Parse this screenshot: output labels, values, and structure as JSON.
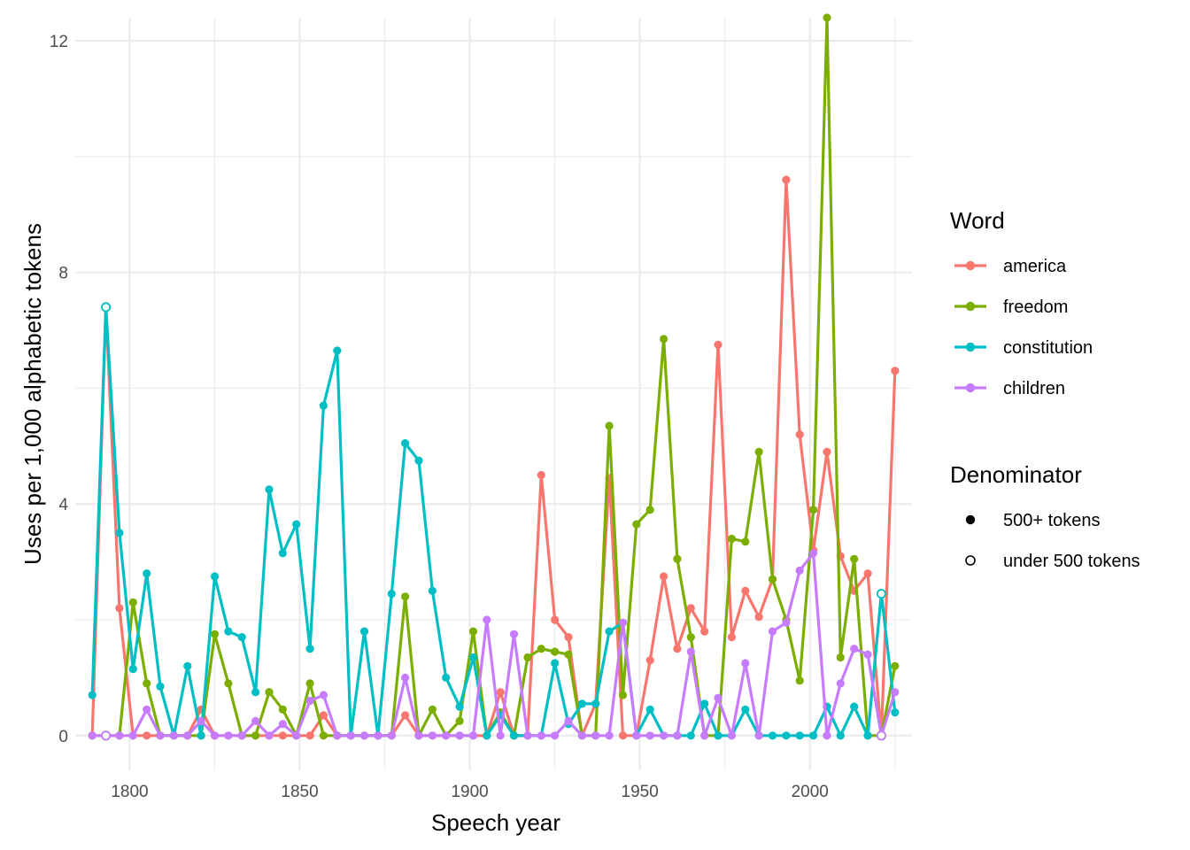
{
  "chart_data": {
    "type": "line",
    "xlabel": "Speech year",
    "ylabel": "Uses per 1,000 alphabetic tokens",
    "xlim": [
      1784,
      2030
    ],
    "ylim": [
      -0.6,
      12.4
    ],
    "xticks": [
      1800,
      1850,
      1900,
      1950,
      2000
    ],
    "xtick_labels": [
      "1800",
      "1850",
      "1900",
      "1950",
      "2000"
    ],
    "yticks": [
      0,
      4,
      8,
      12
    ],
    "ytick_labels": [
      "0",
      "4",
      "8",
      "12"
    ],
    "grid": true,
    "legend_placement": "right",
    "color_legend": {
      "title": "Word",
      "entries": [
        "america",
        "freedom",
        "constitution",
        "children"
      ]
    },
    "shape_legend": {
      "title": "Denominator",
      "entries": [
        "500+ tokens",
        "under 500 tokens"
      ]
    },
    "colors": {
      "america": "#f8766d",
      "freedom": "#7cae00",
      "constitution": "#00bfc4",
      "children": "#c77cff"
    },
    "x": [
      1789,
      1793,
      1797,
      1801,
      1805,
      1809,
      1813,
      1817,
      1821,
      1825,
      1829,
      1833,
      1837,
      1841,
      1845,
      1849,
      1853,
      1857,
      1861,
      1865,
      1869,
      1873,
      1877,
      1881,
      1885,
      1889,
      1893,
      1897,
      1901,
      1905,
      1909,
      1913,
      1917,
      1921,
      1925,
      1929,
      1933,
      1937,
      1941,
      1945,
      1949,
      1953,
      1957,
      1961,
      1965,
      1969,
      1973,
      1977,
      1981,
      1985,
      1989,
      1993,
      1997,
      2001,
      2005,
      2009,
      2013,
      2017,
      2021,
      2025
    ],
    "under_500_years": [
      1793,
      2021
    ],
    "series": [
      {
        "name": "america",
        "values": [
          0,
          7.4,
          2.2,
          0,
          0,
          0,
          0,
          0,
          0.45,
          0,
          0,
          0,
          0,
          0,
          0,
          0,
          0,
          0.35,
          0,
          0,
          0,
          0,
          0,
          0.35,
          0,
          0,
          0,
          0,
          0,
          0,
          0.75,
          0,
          0,
          4.5,
          2.0,
          1.7,
          0,
          0.55,
          4.45,
          0,
          0,
          1.3,
          2.75,
          1.5,
          2.2,
          1.8,
          6.75,
          1.7,
          2.5,
          2.05,
          2.7,
          9.6,
          5.2,
          3.2,
          4.9,
          3.1,
          2.5,
          2.8,
          0,
          6.3
        ]
      },
      {
        "name": "freedom",
        "values": [
          0,
          0,
          0,
          2.3,
          0.9,
          0,
          0,
          0,
          0,
          1.75,
          0.9,
          0,
          0,
          0.75,
          0.45,
          0,
          0.9,
          0,
          0,
          0,
          0,
          0,
          0,
          2.4,
          0,
          0.45,
          0,
          0.25,
          1.8,
          0,
          0.4,
          0,
          1.35,
          1.5,
          1.45,
          1.4,
          0,
          0,
          5.35,
          0.7,
          3.65,
          3.9,
          6.85,
          3.05,
          1.7,
          0,
          0,
          3.4,
          3.35,
          4.9,
          2.7,
          2.0,
          0.95,
          3.9,
          12.4,
          1.35,
          3.05,
          0,
          0,
          1.2
        ]
      },
      {
        "name": "constitution",
        "values": [
          0.7,
          7.4,
          3.5,
          1.15,
          2.8,
          0.85,
          0,
          1.2,
          0,
          2.75,
          1.8,
          1.7,
          0.75,
          4.25,
          3.15,
          3.65,
          1.5,
          5.7,
          6.65,
          0,
          1.8,
          0,
          2.45,
          5.05,
          4.75,
          2.5,
          1.0,
          0.5,
          1.35,
          0,
          0.35,
          0,
          0,
          0,
          1.25,
          0.2,
          0.55,
          0.55,
          1.8,
          1.95,
          0,
          0.45,
          0,
          0,
          0,
          0.55,
          0,
          0,
          0.45,
          0,
          0,
          0,
          0,
          0,
          0.5,
          0,
          0.5,
          0,
          2.45,
          0.4
        ]
      },
      {
        "name": "children",
        "values": [
          0,
          0,
          0,
          0,
          0.45,
          0,
          0,
          0,
          0.25,
          0,
          0,
          0,
          0.25,
          0,
          0.2,
          0,
          0.6,
          0.7,
          0,
          0,
          0,
          0,
          0,
          1.0,
          0,
          0,
          0,
          0,
          0,
          2.0,
          0,
          1.75,
          0,
          0,
          0,
          0.25,
          0,
          0,
          0,
          1.95,
          0,
          0,
          0,
          0,
          1.45,
          0,
          0.65,
          0,
          1.25,
          0,
          1.8,
          1.95,
          2.85,
          3.15,
          0,
          0.9,
          1.5,
          1.4,
          0,
          0.75
        ]
      }
    ]
  }
}
